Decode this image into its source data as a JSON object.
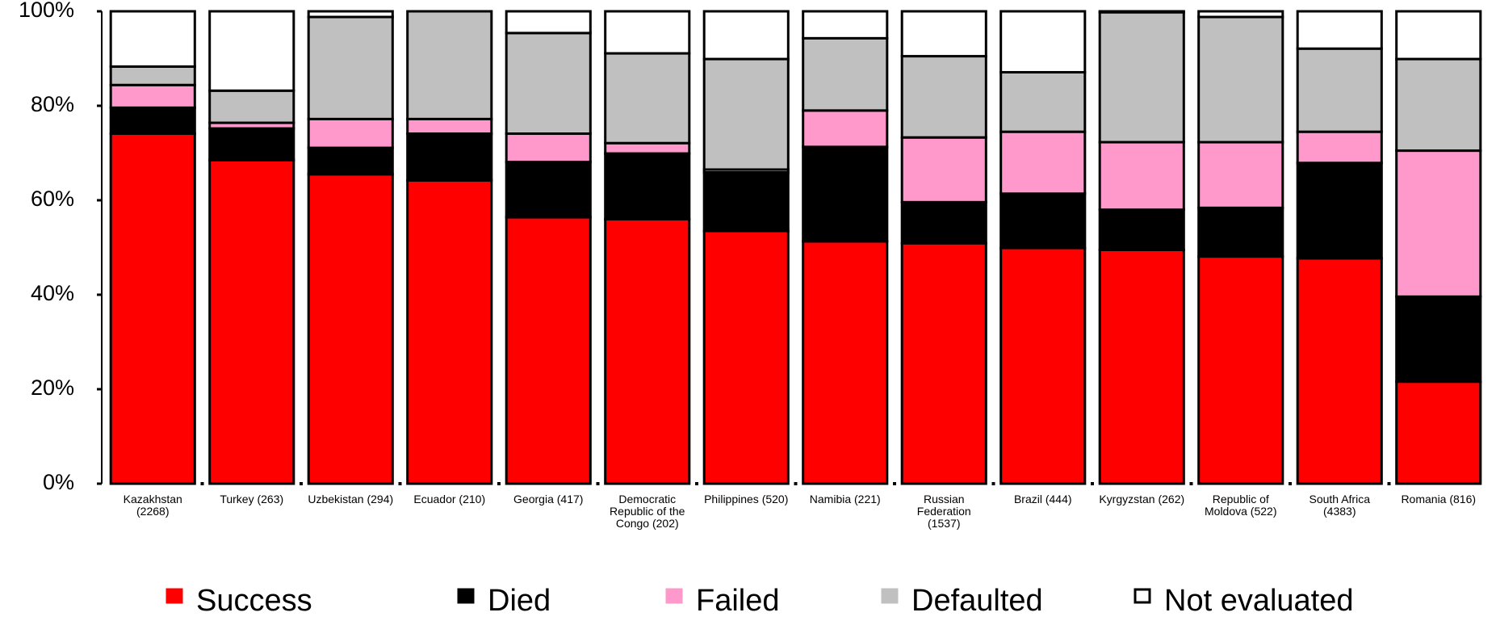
{
  "chart_data": {
    "type": "stacked_bar",
    "categories": [
      "Kazakhstan (2268)",
      "Turkey (263)",
      "Uzbekistan (294)",
      "Ecuador (210)",
      "Georgia (417)",
      "Democratic Republic of the Congo (202)",
      "Philippines (520)",
      "Namibia (221)",
      "Russian Federation (1537)",
      "Brazil (444)",
      "Kyrgyzstan (262)",
      "Republic of Moldova (522)",
      "South Africa (4383)",
      "Romania (816)"
    ],
    "series": [
      {
        "name": "Success",
        "color": "#ff0000",
        "values": [
          74.1,
          68.5,
          65.5,
          64.2,
          56.4,
          56.0,
          53.5,
          51.3,
          50.9,
          49.9,
          49.5,
          48.1,
          47.7,
          21.6
        ]
      },
      {
        "name": "Died",
        "color": "#000000",
        "values": [
          5.5,
          6.7,
          5.6,
          9.9,
          11.7,
          13.9,
          12.4,
          20.0,
          8.7,
          11.5,
          8.5,
          10.3,
          20.2,
          18.0
        ]
      },
      {
        "name": "Failed",
        "color": "#ff99cc",
        "values": [
          4.8,
          1.2,
          6.1,
          3.1,
          6.0,
          2.2,
          0.6,
          7.7,
          13.7,
          13.1,
          14.3,
          13.9,
          6.6,
          30.9
        ]
      },
      {
        "name": "Defaulted",
        "color": "#c0c0c0",
        "values": [
          3.9,
          6.8,
          21.6,
          22.8,
          21.3,
          19.0,
          23.4,
          15.3,
          17.2,
          12.6,
          27.5,
          26.5,
          17.6,
          19.4
        ]
      },
      {
        "name": "Not evaluated",
        "color": "#ffffff",
        "values": [
          11.7,
          16.8,
          1.2,
          0,
          4.6,
          8.9,
          10.1,
          5.7,
          9.5,
          12.9,
          0.2,
          1.2,
          7.9,
          10.1
        ]
      }
    ],
    "ylim": [
      0,
      100
    ],
    "yticks": [
      {
        "value": 0,
        "label": "0%"
      },
      {
        "value": 20,
        "label": "20%"
      },
      {
        "value": 40,
        "label": "40%"
      },
      {
        "value": 60,
        "label": "60%"
      },
      {
        "value": 80,
        "label": "80%"
      },
      {
        "value": 100,
        "label": "100%"
      }
    ],
    "legend": "bottom"
  }
}
